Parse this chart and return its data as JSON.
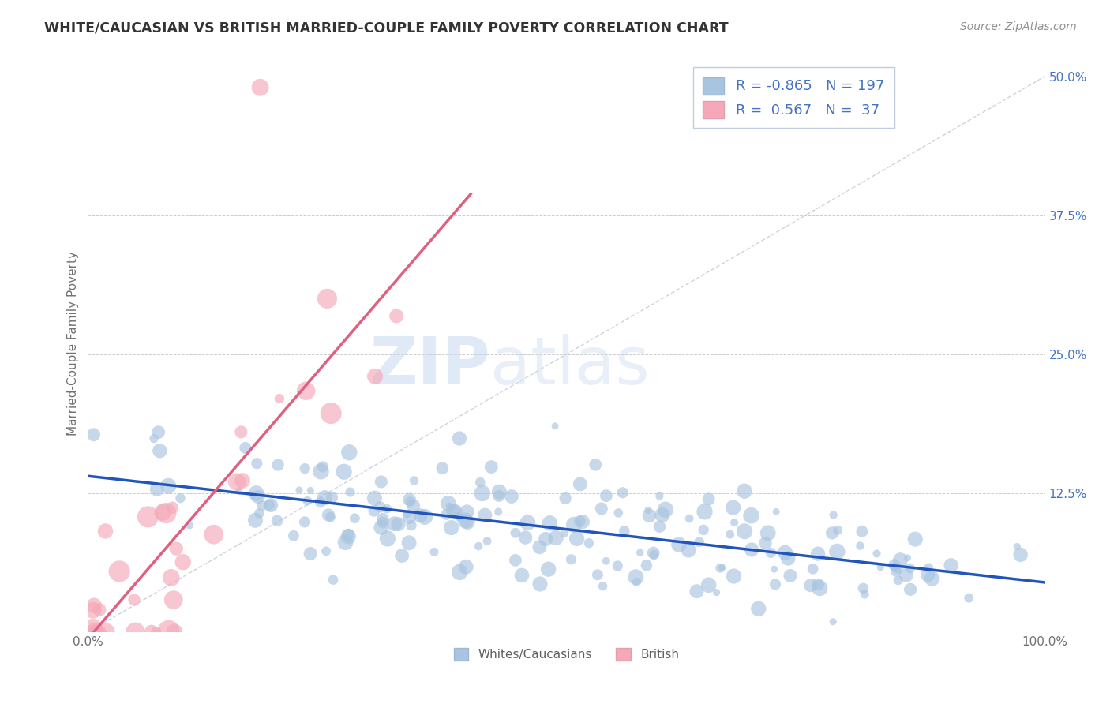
{
  "title": "WHITE/CAUCASIAN VS BRITISH MARRIED-COUPLE FAMILY POVERTY CORRELATION CHART",
  "source": "Source: ZipAtlas.com",
  "ylabel": "Married-Couple Family Poverty",
  "watermark_zip": "ZIP",
  "watermark_atlas": "atlas",
  "legend_labels": [
    "Whites/Caucasians",
    "British"
  ],
  "blue_R": "-0.865",
  "blue_N": "197",
  "pink_R": "0.567",
  "pink_N": "37",
  "xlim": [
    0,
    100
  ],
  "ylim": [
    0,
    52
  ],
  "yticks": [
    0,
    12.5,
    25.0,
    37.5,
    50.0
  ],
  "ytick_labels": [
    "",
    "12.5%",
    "25.0%",
    "37.5%",
    "50.0%"
  ],
  "blue_color": "#a8c4e0",
  "pink_color": "#f4a8b8",
  "blue_line_color": "#2255bb",
  "pink_line_color": "#e06080",
  "grid_color": "#cccccc",
  "diag_color": "#c0c8d8",
  "background_color": "#ffffff",
  "title_color": "#333333",
  "axis_label_color": "#707070",
  "tick_color": "#4472c4",
  "source_color": "#909090",
  "legend_text_color": "#4472c4",
  "bottom_legend_color": "#606060",
  "seed": 123
}
